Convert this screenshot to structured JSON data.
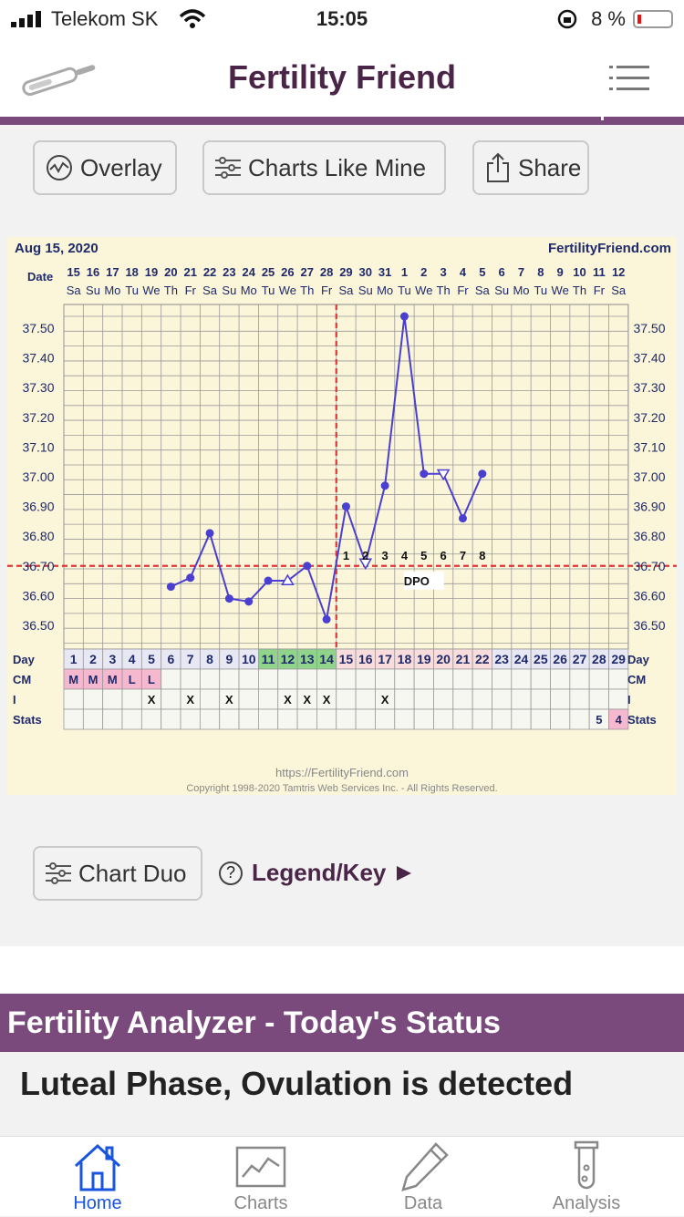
{
  "status_bar": {
    "carrier": "Telekom SK",
    "time": "15:05",
    "battery": "8 %"
  },
  "header": {
    "title": "Fertility Friend"
  },
  "toolbar": {
    "overlay": "Overlay",
    "charts_like_mine": "Charts Like Mine",
    "share": "Share"
  },
  "chart": {
    "date_label": "Aug 15, 2020",
    "site": "FertilityFriend.com",
    "row_date": "Date",
    "row_day": "Day",
    "row_cm": "CM",
    "row_i": "I",
    "row_stats": "Stats",
    "dpo_label": "DPO",
    "footer_url": "https://FertilityFriend.com",
    "copyright": "Copyright 1998-2020 Tamtris Web Services Inc. - All Rights Reserved.",
    "dates": [
      "15",
      "16",
      "17",
      "18",
      "19",
      "20",
      "21",
      "22",
      "23",
      "24",
      "25",
      "26",
      "27",
      "28",
      "29",
      "30",
      "31",
      "1",
      "2",
      "3",
      "4",
      "5",
      "6",
      "7",
      "8",
      "9",
      "10",
      "11",
      "12"
    ],
    "weekdays": [
      "Sa",
      "Su",
      "Mo",
      "Tu",
      "We",
      "Th",
      "Fr",
      "Sa",
      "Su",
      "Mo",
      "Tu",
      "We",
      "Th",
      "Fr",
      "Sa",
      "Su",
      "Mo",
      "Tu",
      "We",
      "Th",
      "Fr",
      "Sa",
      "Su",
      "Mo",
      "Tu",
      "We",
      "Th",
      "Fr",
      "Sa"
    ],
    "cycle_days": [
      "1",
      "2",
      "3",
      "4",
      "5",
      "6",
      "7",
      "8",
      "9",
      "10",
      "11",
      "12",
      "13",
      "14",
      "15",
      "16",
      "17",
      "18",
      "19",
      "20",
      "21",
      "22",
      "23",
      "24",
      "25",
      "26",
      "27",
      "28",
      "29"
    ],
    "cm": [
      "M",
      "M",
      "M",
      "L",
      "L",
      "",
      "",
      "",
      "",
      "",
      "",
      "",
      "",
      "",
      "",
      "",
      "",
      "",
      "",
      "",
      "",
      "",
      "",
      "",
      "",
      "",
      "",
      "",
      ""
    ],
    "intercourse": [
      "",
      "",
      "",
      "",
      "X",
      "",
      "X",
      "",
      "X",
      "",
      "",
      "X",
      "X",
      "X",
      "",
      "",
      "X",
      "",
      "",
      "",
      "",
      "",
      "",
      "",
      "",
      "",
      "",
      "",
      ""
    ],
    "stats": [
      "",
      "",
      "",
      "",
      "",
      "",
      "",
      "",
      "",
      "",
      "",
      "",
      "",
      "",
      "",
      "",
      "",
      "",
      "",
      "",
      "",
      "",
      "",
      "",
      "",
      "",
      "",
      "5",
      "4"
    ],
    "y_ticks": [
      "37.50",
      "37.40",
      "37.30",
      "37.20",
      "37.10",
      "37.00",
      "36.90",
      "36.80",
      "36.70",
      "36.60",
      "36.50"
    ],
    "dpo_numbers": [
      "1",
      "2",
      "3",
      "4",
      "5",
      "6",
      "7",
      "8"
    ]
  },
  "chart_data": {
    "type": "line",
    "x": [
      6,
      7,
      8,
      9,
      10,
      11,
      12,
      13,
      14,
      15,
      16,
      17,
      18,
      19,
      20,
      21,
      22
    ],
    "y": [
      36.63,
      36.66,
      36.81,
      36.59,
      36.58,
      36.65,
      36.65,
      36.7,
      36.52,
      36.9,
      36.71,
      36.97,
      37.54,
      37.01,
      37.01,
      36.86,
      37.01
    ],
    "open_markers": [
      12,
      16,
      20
    ],
    "coverline": 36.7,
    "ovulation_day": 14,
    "ylim": [
      36.42,
      37.58
    ],
    "xlim": [
      1,
      29
    ],
    "fertile_days": [
      11,
      12,
      13,
      14
    ],
    "colors": {
      "line": "#4a3fd1",
      "coverline": "#e0363a",
      "fertile": "#8fd48a",
      "period": "#f6b8cf",
      "luteal": "#f9dcdc"
    }
  },
  "buttons": {
    "chart_duo": "Chart Duo",
    "legend": "Legend/Key"
  },
  "analyzer": {
    "title": "Fertility Analyzer - Today's Status",
    "status": "Luteal Phase, Ovulation is detected"
  },
  "tabs": [
    {
      "label": "Home",
      "icon": "home-icon"
    },
    {
      "label": "Charts",
      "icon": "chart-icon"
    },
    {
      "label": "Data",
      "icon": "pencil-icon"
    },
    {
      "label": "Analysis",
      "icon": "test-tube-icon"
    }
  ]
}
